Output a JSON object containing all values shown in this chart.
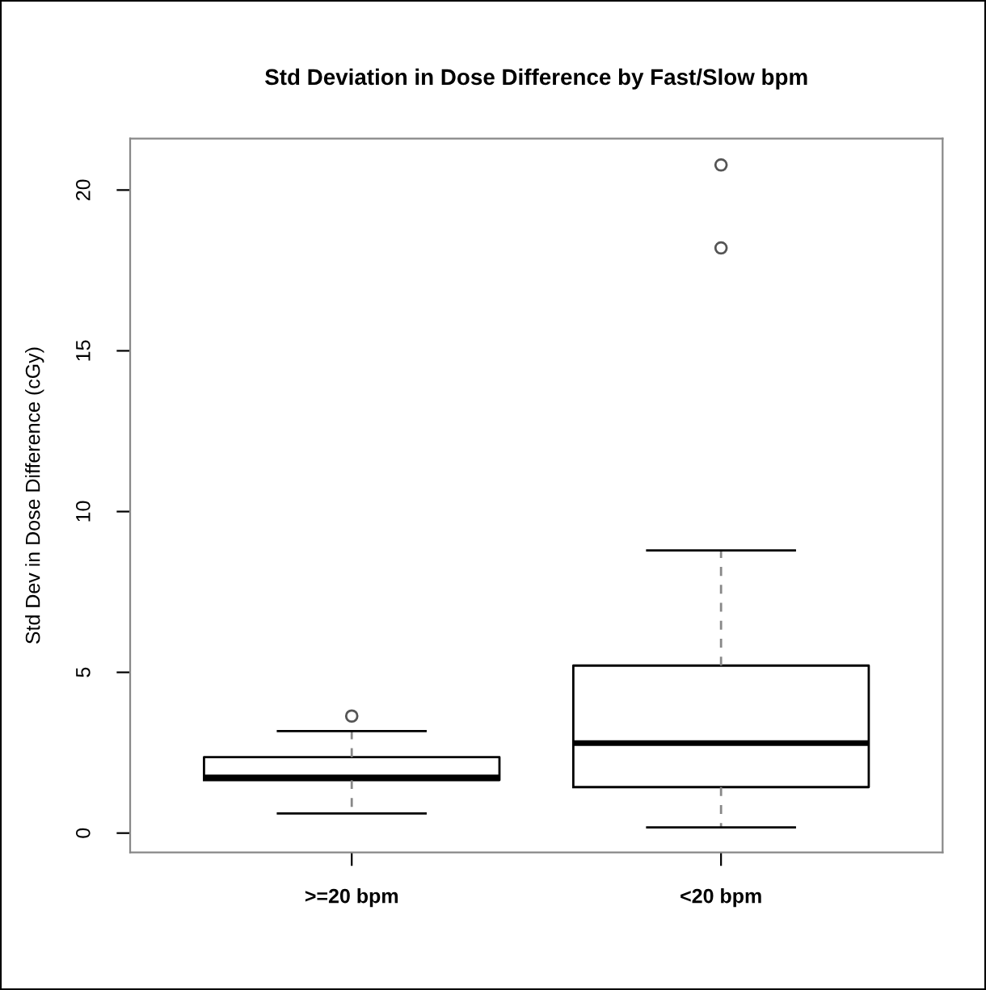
{
  "chart_data": {
    "type": "box",
    "title": "Std Deviation in Dose Difference by Fast/Slow bpm",
    "ylabel": "Std Dev in Dose Difference (cGy)",
    "categories": [
      ">=20 bpm",
      "<20 bpm"
    ],
    "boxes": [
      {
        "low": 0.61,
        "q1": 1.65,
        "median": 1.73,
        "q3": 2.36,
        "high": 3.17,
        "outliers": [
          3.64
        ]
      },
      {
        "low": 0.18,
        "q1": 1.43,
        "median": 2.8,
        "q3": 5.21,
        "high": 8.79,
        "outliers": [
          18.2,
          20.78
        ]
      }
    ],
    "ylim": [
      -0.6,
      21.6
    ],
    "yticks": [
      0,
      5,
      10,
      15,
      20
    ],
    "grid": false
  }
}
